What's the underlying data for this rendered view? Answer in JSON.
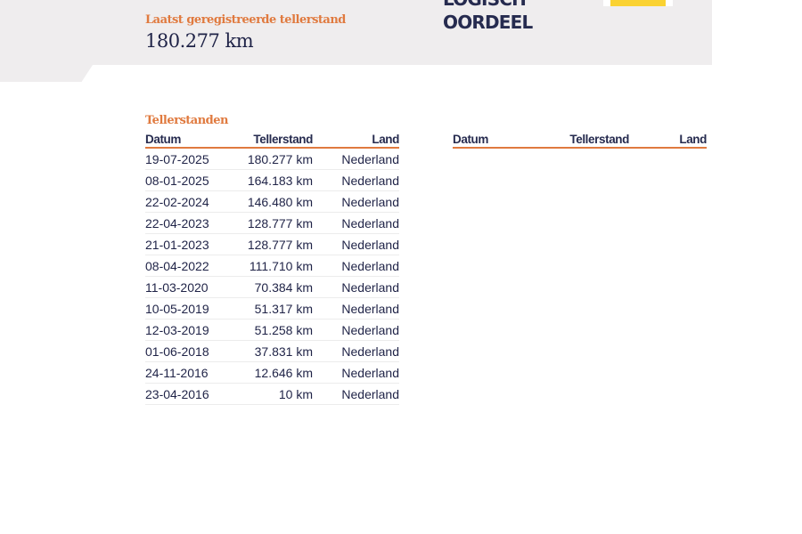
{
  "header": {
    "last_reading_label": "Laatst geregistreerde tellerstand",
    "last_reading_value": "180.277 km",
    "verdict_line1": "LOGISCH",
    "verdict_line2": "OORDEEL",
    "badge_color": "#fad232"
  },
  "readings": {
    "title": "Tellerstanden",
    "columns": [
      "Datum",
      "Tellerstand",
      "Land"
    ],
    "rows": [
      [
        "19-07-2025",
        "180.277 km",
        "Nederland"
      ],
      [
        "08-01-2025",
        "164.183 km",
        "Nederland"
      ],
      [
        "22-02-2024",
        "146.480 km",
        "Nederland"
      ],
      [
        "22-04-2023",
        "128.777 km",
        "Nederland"
      ],
      [
        "21-01-2023",
        "128.777 km",
        "Nederland"
      ],
      [
        "08-04-2022",
        "111.710 km",
        "Nederland"
      ],
      [
        "11-03-2020",
        "70.384 km",
        "Nederland"
      ],
      [
        "10-05-2019",
        "51.317 km",
        "Nederland"
      ],
      [
        "12-03-2019",
        "51.258 km",
        "Nederland"
      ],
      [
        "01-06-2018",
        "37.831 km",
        "Nederland"
      ],
      [
        "24-11-2016",
        "12.646 km",
        "Nederland"
      ],
      [
        "23-04-2016",
        "10 km",
        "Nederland"
      ]
    ],
    "columns_second": [
      "Datum",
      "Tellerstand",
      "Land"
    ]
  },
  "colors": {
    "accent": "#e07a3f",
    "text": "#1f2347",
    "banner": "#efedee"
  }
}
